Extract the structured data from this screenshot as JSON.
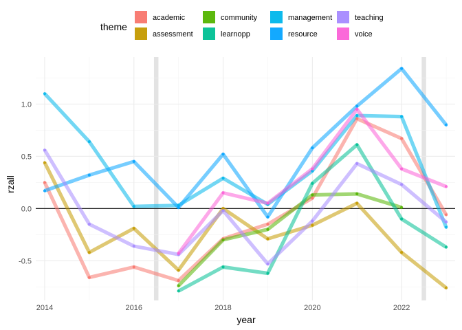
{
  "chart_data": {
    "type": "line",
    "xlabel": "year",
    "ylabel": "rzall",
    "xlim": [
      2013.8,
      2023.2
    ],
    "ylim": [
      -0.88,
      1.45
    ],
    "x_ticks": [
      2014,
      2016,
      2018,
      2020,
      2022
    ],
    "y_ticks": [
      -0.5,
      0.0,
      0.5,
      1.0
    ],
    "x_minor_ticks": [
      2015,
      2017,
      2019,
      2021,
      2023
    ],
    "y_minor_ticks": [
      -0.75,
      -0.25,
      0.25,
      0.75,
      1.25
    ],
    "x_tick_labels": [
      "2014",
      "2016",
      "2018",
      "2020",
      "2022"
    ],
    "y_tick_labels": [
      "-0.5",
      "0.0",
      "0.5",
      "1.0"
    ],
    "grid": true,
    "hline": 0,
    "shaded_bands": [
      {
        "from": 2016.45,
        "to": 2016.55
      },
      {
        "from": 2022.45,
        "to": 2022.55
      }
    ],
    "legend": {
      "title": "theme",
      "position": "top"
    },
    "series": [
      {
        "name": "academic",
        "color": "#F8766D",
        "x": [
          2014,
          2015,
          2016,
          2017,
          2018,
          2019,
          2020,
          2021,
          2022,
          2023
        ],
        "y": [
          0.25,
          -0.66,
          -0.56,
          -0.69,
          -0.29,
          -0.15,
          0.1,
          0.86,
          0.67,
          -0.06
        ]
      },
      {
        "name": "assessment",
        "color": "#C49A00",
        "x": [
          2014,
          2015,
          2016,
          2017,
          2018,
          2019,
          2020,
          2021,
          2022,
          2023
        ],
        "y": [
          0.44,
          -0.42,
          -0.19,
          -0.59,
          0.0,
          -0.29,
          -0.16,
          0.05,
          -0.42,
          -0.76
        ]
      },
      {
        "name": "community",
        "color": "#53B400",
        "x": [
          2017,
          2018,
          2019,
          2020,
          2021,
          2022
        ],
        "y": [
          -0.74,
          -0.3,
          -0.2,
          0.13,
          0.14,
          0.01
        ]
      },
      {
        "name": "learnopp",
        "color": "#00C094",
        "x": [
          2017,
          2018,
          2019,
          2020,
          2021,
          2022,
          2023
        ],
        "y": [
          -0.79,
          -0.56,
          -0.62,
          0.24,
          0.61,
          -0.1,
          -0.37
        ]
      },
      {
        "name": "management",
        "color": "#00B6EB",
        "x": [
          2014,
          2015,
          2016,
          2017,
          2018,
          2019,
          2020,
          2021,
          2022,
          2023
        ],
        "y": [
          1.1,
          0.64,
          0.02,
          0.03,
          0.29,
          0.04,
          0.36,
          0.89,
          0.88,
          -0.18
        ]
      },
      {
        "name": "resource",
        "color": "#06A4FF",
        "x": [
          2014,
          2015,
          2016,
          2017,
          2018,
          2019,
          2020,
          2021,
          2022,
          2023
        ],
        "y": [
          0.17,
          0.32,
          0.45,
          0.01,
          0.52,
          -0.08,
          0.58,
          0.98,
          1.34,
          0.8
        ]
      },
      {
        "name": "teaching",
        "color": "#A58AFF",
        "x": [
          2014,
          2015,
          2016,
          2017,
          2018,
          2019,
          2020,
          2021,
          2022,
          2023
        ],
        "y": [
          0.56,
          -0.15,
          -0.36,
          -0.44,
          -0.02,
          -0.53,
          -0.12,
          0.43,
          0.23,
          -0.13
        ]
      },
      {
        "name": "voice",
        "color": "#FB61D7",
        "x": [
          2017,
          2018,
          2019,
          2020,
          2021,
          2022,
          2023
        ],
        "y": [
          -0.43,
          0.15,
          0.05,
          0.38,
          0.95,
          0.38,
          0.21
        ]
      }
    ]
  }
}
